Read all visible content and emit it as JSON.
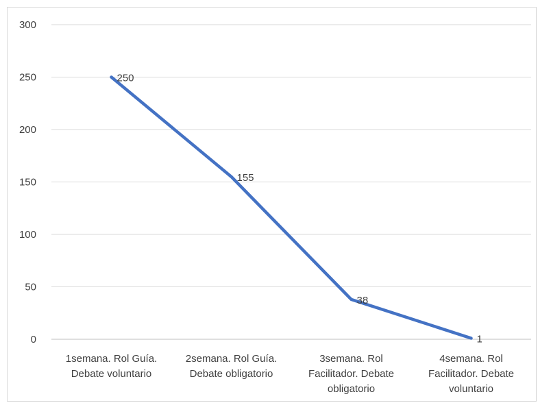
{
  "chart_data": {
    "type": "line",
    "categories": [
      [
        "1semana. Rol Guía.",
        "Debate voluntario"
      ],
      [
        "2semana. Rol Guía.",
        "Debate obligatorio"
      ],
      [
        "3semana. Rol",
        "Facilitador. Debate",
        "obligatorio"
      ],
      [
        "4semana. Rol",
        "Facilitador. Debate",
        "voluntario"
      ]
    ],
    "series": [
      {
        "values": [
          250,
          155,
          38,
          1
        ],
        "color": "#4472C4"
      }
    ],
    "data_labels": [
      "250",
      "155",
      "38",
      "1"
    ],
    "y_ticks": [
      "0",
      "50",
      "100",
      "150",
      "200",
      "250",
      "300"
    ],
    "ylim": [
      0,
      300
    ],
    "grid": true,
    "legend": "none",
    "gridline_color": "#d9d9d9",
    "axis_color": "#bfbfbf"
  }
}
